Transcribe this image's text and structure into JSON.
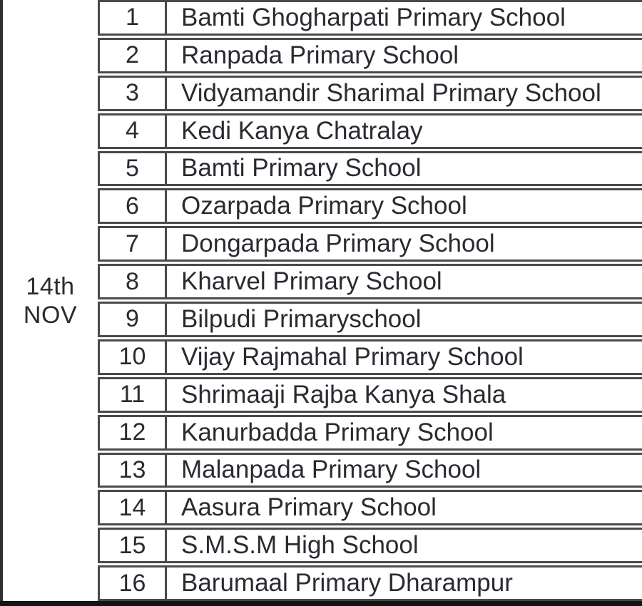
{
  "document": {
    "date_cell": {
      "line1": "14th",
      "line2": "NOV"
    },
    "rows": [
      {
        "serial": "1",
        "school": "Bamti Ghogharpati Primary School"
      },
      {
        "serial": "2",
        "school": "Ranpada Primary School"
      },
      {
        "serial": "3",
        "school": "Vidyamandir Sharimal Primary School"
      },
      {
        "serial": "4",
        "school": "Kedi Kanya Chatralay"
      },
      {
        "serial": "5",
        "school": "Bamti Primary School"
      },
      {
        "serial": "6",
        "school": "Ozarpada Primary School"
      },
      {
        "serial": "7",
        "school": "Dongarpada Primary School"
      },
      {
        "serial": "8",
        "school": "Kharvel Primary School"
      },
      {
        "serial": "9",
        "school": "Bilpudi Primaryschool"
      },
      {
        "serial": "10",
        "school": "Vijay Rajmahal Primary School"
      },
      {
        "serial": "11",
        "school": "Shrimaaji Rajba Kanya Shala"
      },
      {
        "serial": "12",
        "school": "Kanurbadda Primary School"
      },
      {
        "serial": "13",
        "school": "Malanpada Primary School"
      },
      {
        "serial": "14",
        "school": "Aasura Primary School"
      },
      {
        "serial": "15",
        "school": "S.M.S.M High School"
      },
      {
        "serial": "16",
        "school": "Barumaal Primary Dharampur"
      }
    ],
    "colors": {
      "text": "#2b2a31",
      "grid_line": "#4a4a4c",
      "bottom_bar": "#141414"
    }
  }
}
